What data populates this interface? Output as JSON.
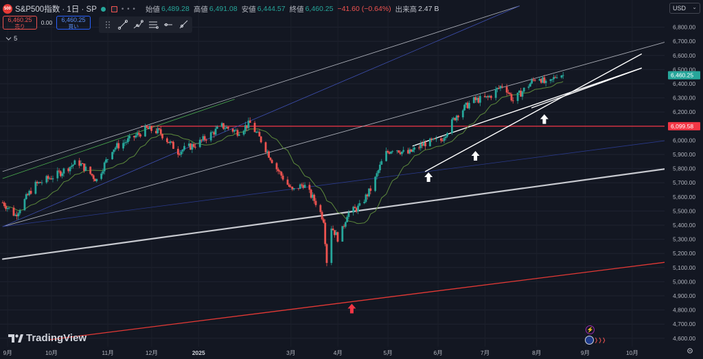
{
  "header": {
    "symbol_badge": "500",
    "title": "S&P500指数 · 1日 · SP",
    "more": "• • •",
    "ohlc": [
      {
        "label": "始値",
        "value": "6,489.28",
        "color": "green"
      },
      {
        "label": "高値",
        "value": "6,491.08",
        "color": "green"
      },
      {
        "label": "安値",
        "value": "6,444.57",
        "color": "green"
      },
      {
        "label": "終値",
        "value": "6,460.25",
        "color": "green"
      }
    ],
    "change": "−41.60 (−0.64%)",
    "volume_label": "出来高",
    "volume": "2.47 B"
  },
  "trade": {
    "sell_price": "6,460.25",
    "sell_label": "売り",
    "spread": "0.00",
    "buy_price": "6,460.25",
    "buy_label": "買い"
  },
  "indicator": {
    "count": "5"
  },
  "currency": {
    "value": "USD"
  },
  "logo": {
    "text": "TradingView"
  },
  "events": {
    "lightning": "⚡",
    "dots": "❭❭❭"
  },
  "icons": [
    "lightning-icon",
    "us-flag-icon",
    "gear-icon",
    "chevron-down-icon",
    "trend-line-icon"
  ],
  "colors": {
    "background": "#131722",
    "up": "#26a69a",
    "down": "#ef5350",
    "h_line": "#f23645",
    "ma": "#5d8a3c"
  },
  "chart_data": {
    "type": "candlestick",
    "title": "S&P500指数 · 1日 · SP",
    "last_price": 6460.25,
    "horizontal_line": 6099.58,
    "ylim": [
      4550,
      6950
    ],
    "y_ticks": [
      "6,800.00",
      "6,700.00",
      "6,600.00",
      "6,500.00",
      "6,400.00",
      "6,300.00",
      "6,200.00",
      "6,100.00",
      "6,000.00",
      "5,900.00",
      "5,800.00",
      "5,700.00",
      "5,600.00",
      "5,500.00",
      "5,400.00",
      "5,300.00",
      "5,200.00",
      "5,100.00",
      "5,000.00",
      "4,900.00",
      "4,800.00",
      "4,700.00",
      "4,600.00"
    ],
    "x_ticks": [
      "9月",
      "10月",
      "11月",
      "12月",
      "2025",
      "3月",
      "4月",
      "5月",
      "6月",
      "7月",
      "8月",
      "9月",
      "10月"
    ],
    "price_labels": [
      {
        "value": 6460.25,
        "label": "6,460.25",
        "color": "#26a69a"
      },
      {
        "value": 6099.58,
        "label": "6,099.58",
        "color": "#f23645"
      }
    ],
    "anchors": [
      {
        "d": 0,
        "p": 5560
      },
      {
        "d": 8,
        "p": 5470
      },
      {
        "d": 20,
        "p": 5680
      },
      {
        "d": 35,
        "p": 5760
      },
      {
        "d": 48,
        "p": 5850
      },
      {
        "d": 60,
        "p": 5720
      },
      {
        "d": 70,
        "p": 5940
      },
      {
        "d": 82,
        "p": 6010
      },
      {
        "d": 92,
        "p": 6080
      },
      {
        "d": 100,
        "p": 6060
      },
      {
        "d": 112,
        "p": 5920
      },
      {
        "d": 125,
        "p": 5980
      },
      {
        "d": 140,
        "p": 6100
      },
      {
        "d": 150,
        "p": 6060
      },
      {
        "d": 158,
        "p": 6120
      },
      {
        "d": 165,
        "p": 6000
      },
      {
        "d": 175,
        "p": 5800
      },
      {
        "d": 185,
        "p": 5640
      },
      {
        "d": 192,
        "p": 5690
      },
      {
        "d": 200,
        "p": 5560
      },
      {
        "d": 205,
        "p": 5440
      },
      {
        "d": 208,
        "p": 5000
      },
      {
        "d": 210,
        "p": 5390
      },
      {
        "d": 215,
        "p": 5290
      },
      {
        "d": 220,
        "p": 5480
      },
      {
        "d": 228,
        "p": 5530
      },
      {
        "d": 236,
        "p": 5670
      },
      {
        "d": 244,
        "p": 5900
      },
      {
        "d": 250,
        "p": 5950
      },
      {
        "d": 258,
        "p": 5900
      },
      {
        "d": 270,
        "p": 5980
      },
      {
        "d": 280,
        "p": 6000
      },
      {
        "d": 290,
        "p": 6180
      },
      {
        "d": 300,
        "p": 6280
      },
      {
        "d": 310,
        "p": 6300
      },
      {
        "d": 320,
        "p": 6400
      },
      {
        "d": 326,
        "p": 6280
      },
      {
        "d": 335,
        "p": 6380
      },
      {
        "d": 342,
        "p": 6460
      },
      {
        "d": 348,
        "p": 6380
      },
      {
        "d": 355,
        "p": 6480
      },
      {
        "d": 358,
        "p": 6460
      }
    ],
    "trend_lines": [
      {
        "name": "outer-upper",
        "from": [
          0,
          5780
        ],
        "to": [
          330,
          6950
        ],
        "color": "#b2b5be"
      },
      {
        "name": "upper-channel",
        "from": [
          0,
          5390
        ],
        "to": [
          425,
          6700
        ],
        "color": "#b2b5be"
      },
      {
        "name": "green-channel",
        "from": [
          0,
          5730
        ],
        "to": [
          148,
          6290
        ],
        "color": "#4caf50"
      },
      {
        "name": "blue-diagonal",
        "from": [
          0,
          5390
        ],
        "to": [
          330,
          6950
        ],
        "color": "#3f51b5"
      },
      {
        "name": "blue-lower",
        "from": [
          0,
          5390
        ],
        "to": [
          425,
          6000
        ],
        "color": "#2a3a8c"
      },
      {
        "name": "support-white",
        "from": [
          0,
          5160
        ],
        "to": [
          425,
          5800
        ],
        "color": "#c8cad0"
      },
      {
        "name": "lower-red",
        "from": [
          30,
          4590
        ],
        "to": [
          425,
          5140
        ],
        "color": "#e53935"
      },
      {
        "name": "white-1",
        "from": [
          262,
          5960
        ],
        "to": [
          408,
          6510
        ],
        "color": "#ffffff"
      },
      {
        "name": "white-2",
        "from": [
          270,
          5780
        ],
        "to": [
          408,
          6610
        ],
        "color": "#ffffff"
      },
      {
        "name": "white-3",
        "from": [
          338,
          6230
        ],
        "to": [
          408,
          6510
        ],
        "color": "#ffffff"
      }
    ],
    "arrows": [
      {
        "d": 223,
        "p": 4810,
        "color": "#f23645"
      },
      {
        "d": 272,
        "p": 5740,
        "color": "#ffffff"
      },
      {
        "d": 302,
        "p": 5890,
        "color": "#ffffff"
      },
      {
        "d": 346,
        "p": 6150,
        "color": "#ffffff"
      }
    ]
  }
}
